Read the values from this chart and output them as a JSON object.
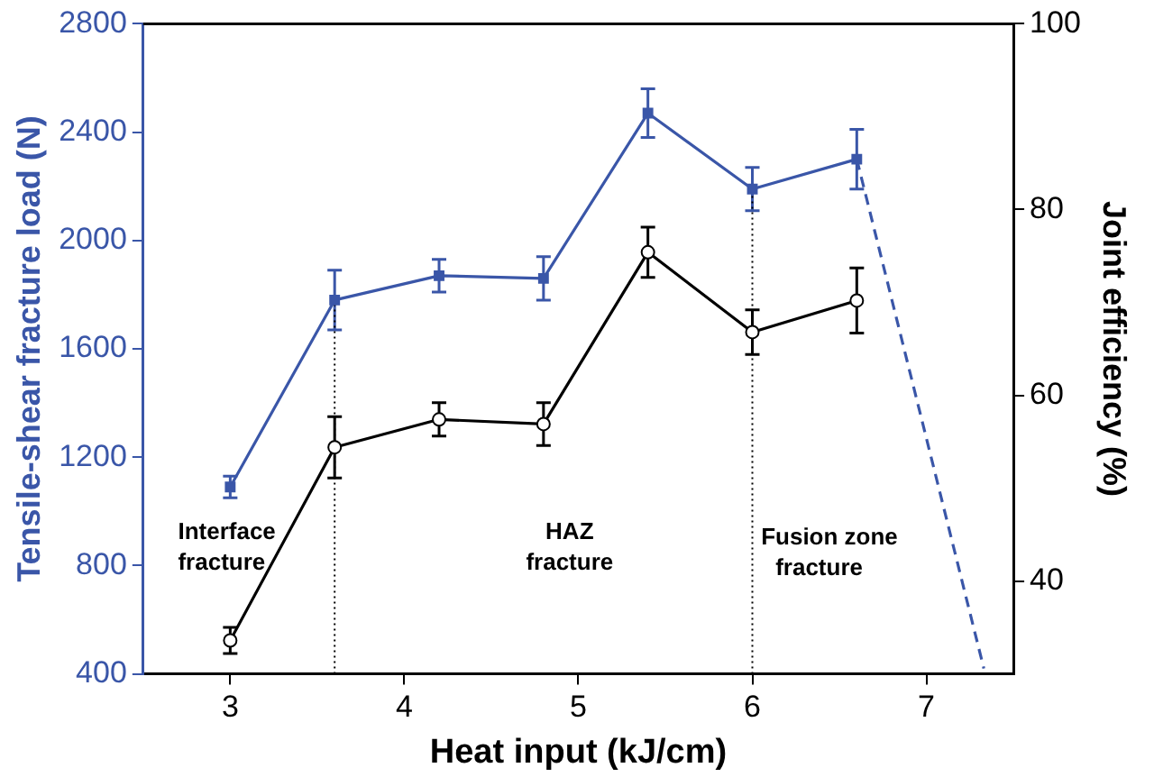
{
  "chart_data": {
    "type": "line",
    "xlabel": "Heat input (kJ/cm)",
    "ylabel": "Tensile-shear fracture load (N)",
    "y2label": "Joint efficiency (%)",
    "xlim": [
      2.5,
      7.5
    ],
    "xticks": [
      3,
      4,
      5,
      6,
      7
    ],
    "ylim": [
      400,
      2800
    ],
    "yticks": [
      400,
      800,
      1200,
      1600,
      2000,
      2400,
      2800
    ],
    "y2lim": [
      30,
      100
    ],
    "y2ticks": [
      40,
      60,
      80,
      100
    ],
    "grid": false,
    "legend": false,
    "series": [
      {
        "color": "#3a56a8",
        "marker": "square",
        "x": [
          3,
          3.6,
          4.2,
          4.8,
          5.4,
          6,
          6.6
        ],
        "values": [
          1090,
          1780,
          1870,
          1860,
          2470,
          2190,
          2300
        ],
        "errors": [
          40,
          110,
          60,
          80,
          90,
          80,
          110
        ]
      },
      {
        "color": "#3a56a8",
        "marker": "none",
        "line_style": "dashed",
        "x": [
          6.6,
          7.33
        ],
        "values": [
          2300,
          420
        ]
      },
      {
        "color": "#000000",
        "marker": "circle",
        "axis": "y2",
        "x": [
          3,
          3.6,
          4.2,
          4.8,
          5.4,
          6,
          6.6
        ],
        "values": [
          33.6,
          54.4,
          57.4,
          56.9,
          75.4,
          66.8,
          70.2
        ],
        "errors": [
          1.4,
          3.3,
          1.8,
          2.3,
          2.7,
          2.4,
          3.5
        ]
      }
    ],
    "ref_lines": [
      {
        "axis": "x",
        "value": 3.6,
        "color": "#000000",
        "line_style": "dotted"
      },
      {
        "axis": "x",
        "value": 6,
        "color": "#000000",
        "line_style": "dotted"
      }
    ],
    "annotations": [
      "Interface fracture",
      "HAZ fracture",
      "Fusion zone fracture"
    ]
  }
}
